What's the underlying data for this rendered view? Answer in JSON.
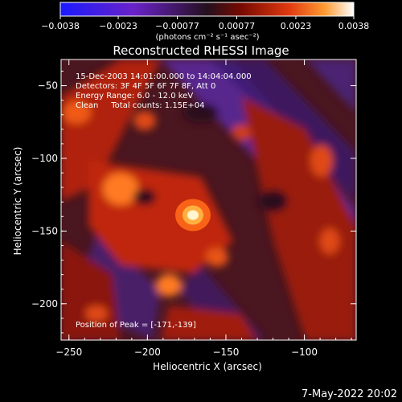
{
  "chart_data": {
    "type": "heatmap",
    "title": "Reconstructed RHESSI Image",
    "xlabel": "Heliocentric X (arcsec)",
    "ylabel": "Heliocentric Y (arcsec)",
    "xlim": [
      -255,
      -67
    ],
    "ylim": [
      -225,
      -32
    ],
    "x_ticks": [
      -250,
      -200,
      -150,
      -100
    ],
    "y_ticks": [
      -50,
      -100,
      -150,
      -200
    ],
    "colorbar": {
      "min": -0.0038,
      "max": 0.0038,
      "ticks": [
        "-0.0038",
        "-0.0023",
        "-0.00077",
        "0.00077",
        "0.0023",
        "0.0038"
      ],
      "unit_label": "(photons cm⁻² s⁻¹ asec⁻²)",
      "colors": [
        "#1a1aff",
        "#6a22c8",
        "#24101e",
        "#7a0a00",
        "#e03a10",
        "#ff9a30",
        "#ffffff"
      ]
    },
    "annotations": {
      "line1": "15-Dec-2003 14:01:00.000 to 14:04:04.000",
      "line2": "Detectors: 3F 4F 5F 6F 7F 8F, Att 0",
      "line3": "Energy Range: 6.0 - 12.0 keV",
      "line4": "Clean     Total counts: 1.15E+04",
      "peak": "Position of Peak = [-171,-139]"
    },
    "peak": [
      -171,
      -139
    ],
    "peak_value": 0.0038,
    "timestamp": "7-May-2022 20:02"
  }
}
